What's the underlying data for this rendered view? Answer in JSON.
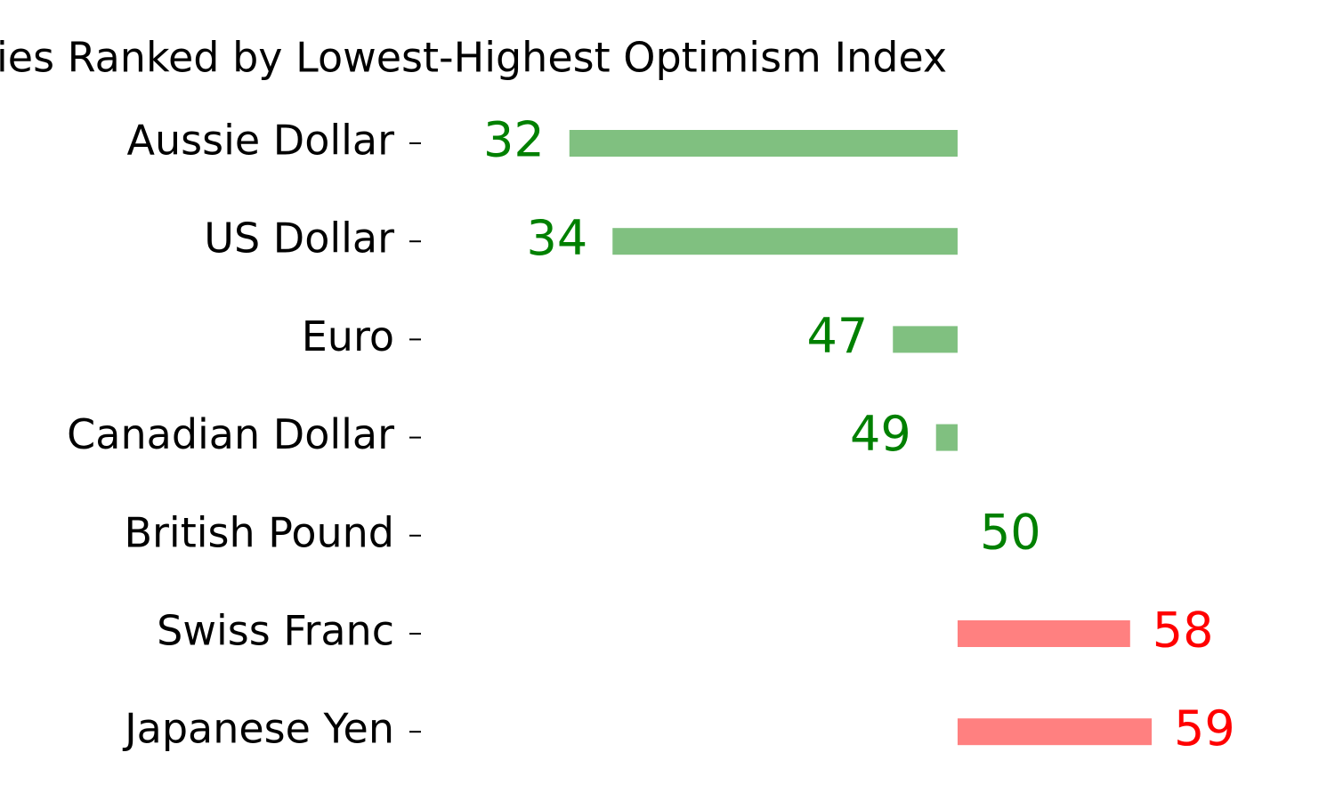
{
  "chart_data": {
    "type": "diverging-bar",
    "title": "ies Ranked by Lowest-Highest Optimism Index",
    "categories": [
      "Aussie Dollar",
      "US Dollar",
      "Euro",
      "Canadian Dollar",
      "British Pound",
      "Swiss Franc",
      "Japanese Yen"
    ],
    "values": [
      32,
      34,
      47,
      49,
      50,
      58,
      59
    ],
    "base": 50,
    "xlim": [
      25.2,
      67.5
    ],
    "colors": [
      "#80c080",
      "#80c080",
      "#80c080",
      "#80c080",
      "#80c080",
      "#ff8080",
      "#ff8080"
    ],
    "value_label_colors": [
      "#008000",
      "#008000",
      "#008000",
      "#008000",
      "#008000",
      "#ff0000",
      "#ff0000"
    ]
  }
}
